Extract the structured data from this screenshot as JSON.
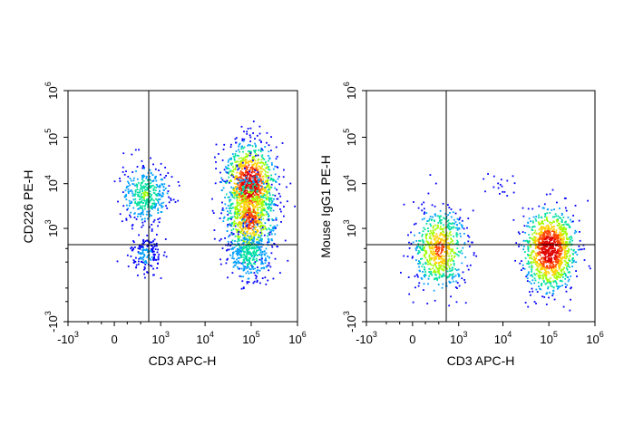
{
  "chart_data": [
    {
      "type": "scatter",
      "subtype": "flow-cytometry-pseudocolor-density",
      "xlabel": "CD3 APC-H",
      "ylabel": "CD226 PE-H",
      "x_scale": "biexponential",
      "y_scale": "biexponential",
      "xlim": [
        -1000,
        1000000
      ],
      "ylim": [
        -1000,
        1000000
      ],
      "x_ticks": [
        {
          "base": "-10",
          "exp": "3",
          "value": -1000
        },
        {
          "base": "0",
          "exp": "",
          "value": 0
        },
        {
          "base": "10",
          "exp": "3",
          "value": 1000
        },
        {
          "base": "10",
          "exp": "4",
          "value": 10000
        },
        {
          "base": "10",
          "exp": "5",
          "value": 100000
        },
        {
          "base": "10",
          "exp": "6",
          "value": 1000000
        }
      ],
      "y_ticks": [
        {
          "base": "-10",
          "exp": "3",
          "value": -1000
        },
        {
          "base": "10",
          "exp": "3",
          "value": 1000
        },
        {
          "base": "10",
          "exp": "4",
          "value": 10000
        },
        {
          "base": "10",
          "exp": "5",
          "value": 100000
        },
        {
          "base": "10",
          "exp": "6",
          "value": 1000000
        }
      ],
      "quadrant_gate": {
        "x": 1500,
        "y": 1600
      },
      "populations": [
        {
          "x": 400,
          "y": 6000,
          "count": 380
        },
        {
          "x": 400,
          "y": 200,
          "count": 170
        },
        {
          "x": 90000,
          "y": 10000,
          "count": 950
        },
        {
          "x": 90000,
          "y": 1800,
          "count": 700
        },
        {
          "x": 90000,
          "y": 200,
          "count": 320
        },
        {
          "x": 100000,
          "y": 120000,
          "count": 15
        }
      ],
      "colormap": [
        "#0000ff",
        "#00a0ff",
        "#00e0a0",
        "#a0ff00",
        "#ffd000",
        "#ff4000",
        "#e00000"
      ],
      "grid": false,
      "legend": "none"
    },
    {
      "type": "scatter",
      "subtype": "flow-cytometry-pseudocolor-density",
      "xlabel": "CD3 APC-H",
      "ylabel": "Mouse IgG1 PE-H",
      "x_scale": "biexponential",
      "y_scale": "biexponential",
      "xlim": [
        -1000,
        1000000
      ],
      "ylim": [
        -1000,
        1000000
      ],
      "x_ticks": [
        {
          "base": "-10",
          "exp": "3",
          "value": -1000
        },
        {
          "base": "0",
          "exp": "",
          "value": 0
        },
        {
          "base": "10",
          "exp": "3",
          "value": 1000
        },
        {
          "base": "10",
          "exp": "4",
          "value": 10000
        },
        {
          "base": "10",
          "exp": "5",
          "value": 100000
        },
        {
          "base": "10",
          "exp": "6",
          "value": 1000000
        }
      ],
      "y_ticks": [
        {
          "base": "-10",
          "exp": "3",
          "value": -1000
        },
        {
          "base": "10",
          "exp": "3",
          "value": 1000
        },
        {
          "base": "10",
          "exp": "4",
          "value": 10000
        },
        {
          "base": "10",
          "exp": "5",
          "value": 100000
        },
        {
          "base": "10",
          "exp": "6",
          "value": 1000000
        }
      ],
      "quadrant_gate": {
        "x": 1500,
        "y": 1600
      },
      "populations": [
        {
          "x": 300,
          "y": 300,
          "count": 650
        },
        {
          "x": 100000,
          "y": 300,
          "count": 1100
        },
        {
          "x": 8000,
          "y": 8000,
          "count": 18
        }
      ],
      "colormap": [
        "#0000ff",
        "#00a0ff",
        "#00e0a0",
        "#a0ff00",
        "#ffd000",
        "#ff4000",
        "#e00000"
      ],
      "grid": false,
      "legend": "none"
    }
  ]
}
